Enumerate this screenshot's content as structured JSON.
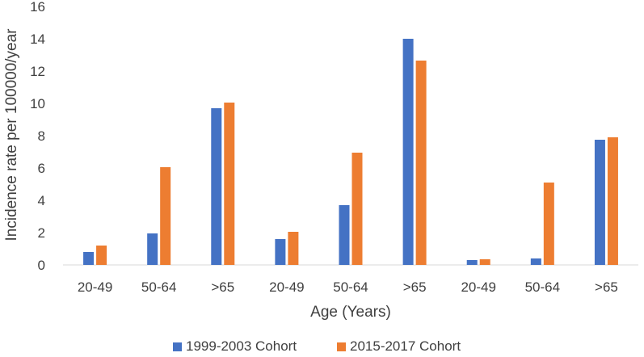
{
  "chart_data": {
    "type": "bar",
    "xlabel": "Age (Years)",
    "ylabel": "Incidence rate per 100000/year",
    "ylim": [
      0,
      16
    ],
    "yticks": [
      "0",
      "2",
      "4",
      "6",
      "8",
      "10",
      "12",
      "14",
      "16"
    ],
    "categories": [
      "20-49",
      "50-64",
      ">65",
      "20-49",
      "50-64",
      ">65",
      "20-49",
      "50-64",
      ">65"
    ],
    "series": [
      {
        "name": "1999-2003 Cohort",
        "color": "#4472C4",
        "values": [
          0.8,
          1.95,
          9.7,
          1.6,
          3.7,
          14.0,
          0.3,
          0.4,
          7.75
        ]
      },
      {
        "name": "2015-2017 Cohort",
        "color": "#ED7D31",
        "values": [
          1.2,
          6.05,
          10.05,
          2.05,
          6.95,
          12.65,
          0.35,
          5.1,
          7.9
        ]
      }
    ],
    "grid": false,
    "legend_position": "bottom"
  }
}
